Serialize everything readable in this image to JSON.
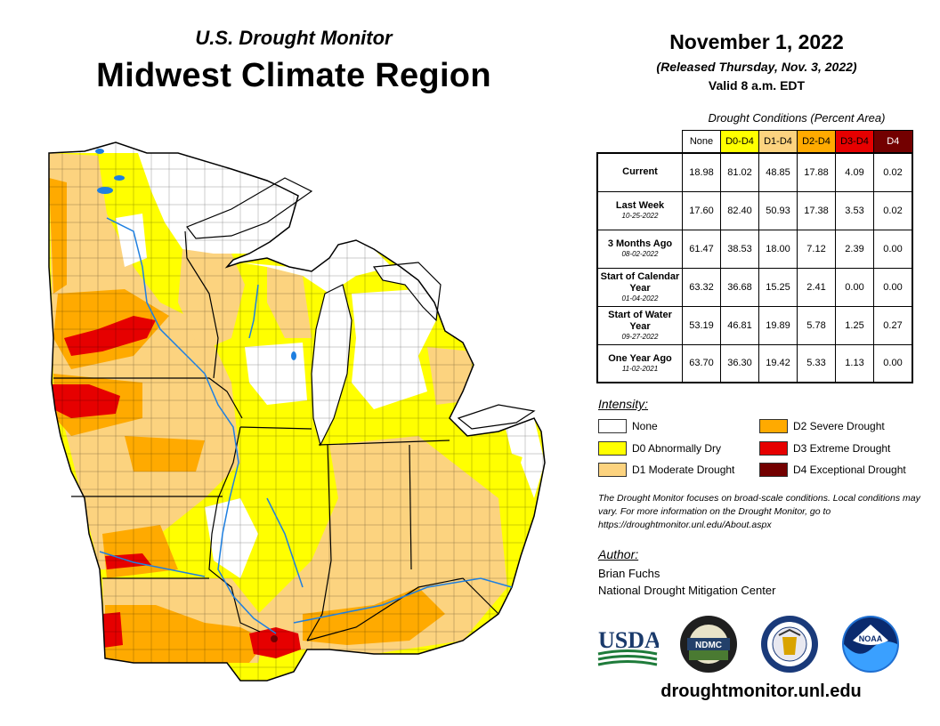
{
  "header": {
    "subtitle": "U.S. Drought Monitor",
    "title": "Midwest Climate Region"
  },
  "info": {
    "date": "November 1, 2022",
    "released": "(Released Thursday, Nov. 3, 2022)",
    "valid": "Valid 8 a.m. EDT"
  },
  "table": {
    "caption": "Drought Conditions (Percent Area)",
    "columns": [
      "None",
      "D0-D4",
      "D1-D4",
      "D2-D4",
      "D3-D4",
      "D4"
    ],
    "column_colors": [
      "#ffffff",
      "#ffff00",
      "#fcd37f",
      "#ffaa00",
      "#e60000",
      "#730000"
    ],
    "rows": [
      {
        "label": "Current",
        "sub": "",
        "values": [
          "18.98",
          "81.02",
          "48.85",
          "17.88",
          "4.09",
          "0.02"
        ]
      },
      {
        "label": "Last Week",
        "sub": "10-25-2022",
        "values": [
          "17.60",
          "82.40",
          "50.93",
          "17.38",
          "3.53",
          "0.02"
        ]
      },
      {
        "label": "3 Months Ago",
        "sub": "08-02-2022",
        "values": [
          "61.47",
          "38.53",
          "18.00",
          "7.12",
          "2.39",
          "0.00"
        ]
      },
      {
        "label": "Start of Calendar Year",
        "sub": "01-04-2022",
        "values": [
          "63.32",
          "36.68",
          "15.25",
          "2.41",
          "0.00",
          "0.00"
        ]
      },
      {
        "label": "Start of Water Year",
        "sub": "09-27-2022",
        "values": [
          "53.19",
          "46.81",
          "19.89",
          "5.78",
          "1.25",
          "0.27"
        ]
      },
      {
        "label": "One Year Ago",
        "sub": "11-02-2021",
        "values": [
          "63.70",
          "36.30",
          "19.42",
          "5.33",
          "1.13",
          "0.00"
        ]
      }
    ]
  },
  "legend": {
    "title": "Intensity:",
    "items": [
      {
        "label": "None",
        "color": "#ffffff"
      },
      {
        "label": "D0 Abnormally Dry",
        "color": "#ffff00"
      },
      {
        "label": "D1 Moderate Drought",
        "color": "#fcd37f"
      },
      {
        "label": "D2 Severe Drought",
        "color": "#ffaa00"
      },
      {
        "label": "D3 Extreme Drought",
        "color": "#e60000"
      },
      {
        "label": "D4 Exceptional Drought",
        "color": "#730000"
      }
    ]
  },
  "note": "The Drought Monitor focuses on broad-scale conditions. Local conditions may vary. For more information on the Drought Monitor, go to https://droughtmonitor.unl.edu/About.aspx",
  "author": {
    "label": "Author:",
    "name": "Brian Fuchs",
    "org": "National Drought Mitigation Center"
  },
  "logos": {
    "usda": "USDA",
    "ndmc": "NDMC",
    "noaa": "NOAA"
  },
  "url": "droughtmonitor.unl.edu"
}
